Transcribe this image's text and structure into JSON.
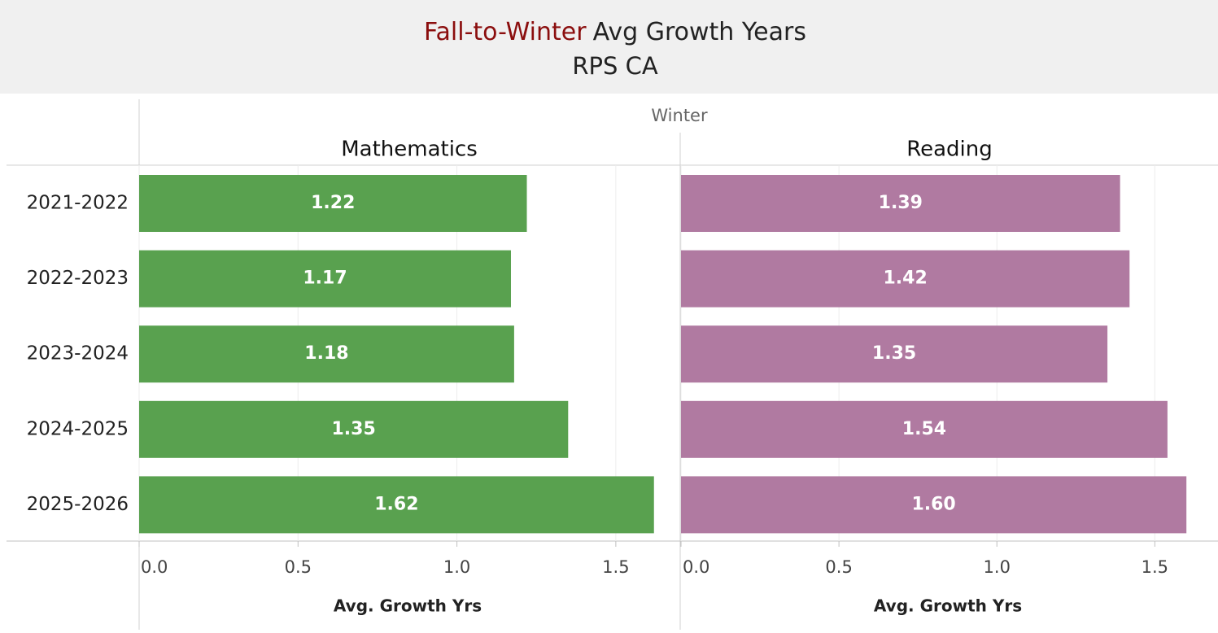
{
  "header": {
    "title_highlight": "Fall-to-Winter",
    "title": "Avg Growth Years",
    "subtitle": "RPS CA",
    "column_header": "Winter"
  },
  "categories": [
    "2021-2022",
    "2022-2023",
    "2023-2024",
    "2024-2025",
    "2025-2026"
  ],
  "chart_data": [
    {
      "type": "bar",
      "orientation": "horizontal",
      "title": "Mathematics",
      "color": "#59a14f",
      "values": [
        1.22,
        1.17,
        1.18,
        1.35,
        1.62
      ],
      "value_labels": [
        "1.22",
        "1.17",
        "1.18",
        "1.35",
        "1.62"
      ],
      "xlim": [
        0,
        1.7
      ],
      "xticks": [
        {
          "value": 0,
          "label": "0.0"
        },
        0.5,
        {
          "value": 1,
          "label": "1.0"
        },
        1.5
      ],
      "xlabel": "Avg. Growth Yrs",
      "grid": true
    },
    {
      "type": "bar",
      "orientation": "horizontal",
      "title": "Reading",
      "color": "#b07aa1",
      "values": [
        1.39,
        1.42,
        1.35,
        1.54,
        1.6
      ],
      "value_labels": [
        "1.39",
        "1.42",
        "1.35",
        "1.54",
        "1.60"
      ],
      "xlim": [
        0,
        1.7
      ],
      "xticks": [
        {
          "value": 0,
          "label": "0.0"
        },
        0.5,
        {
          "value": 1,
          "label": "1.0"
        },
        1.5
      ],
      "xlabel": "Avg. Growth Yrs",
      "grid": true
    }
  ]
}
